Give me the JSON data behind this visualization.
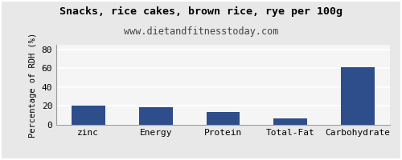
{
  "title": "Snacks, rice cakes, brown rice, rye per 100g",
  "subtitle": "www.dietandfitnesstoday.com",
  "categories": [
    "zinc",
    "Energy",
    "Protein",
    "Total-Fat",
    "Carbohydrate"
  ],
  "values": [
    20,
    19,
    14,
    7,
    61
  ],
  "bar_color": "#2d4e8a",
  "ylabel": "Percentage of RDH (%)",
  "ylim": [
    0,
    85
  ],
  "yticks": [
    0,
    20,
    40,
    60,
    80
  ],
  "background_color": "#e8e8e8",
  "plot_bg_color": "#f5f5f5",
  "title_fontsize": 9.5,
  "subtitle_fontsize": 8.5,
  "ylabel_fontsize": 7.5,
  "tick_fontsize": 8,
  "grid_color": "#ffffff",
  "grid_linewidth": 1.2
}
